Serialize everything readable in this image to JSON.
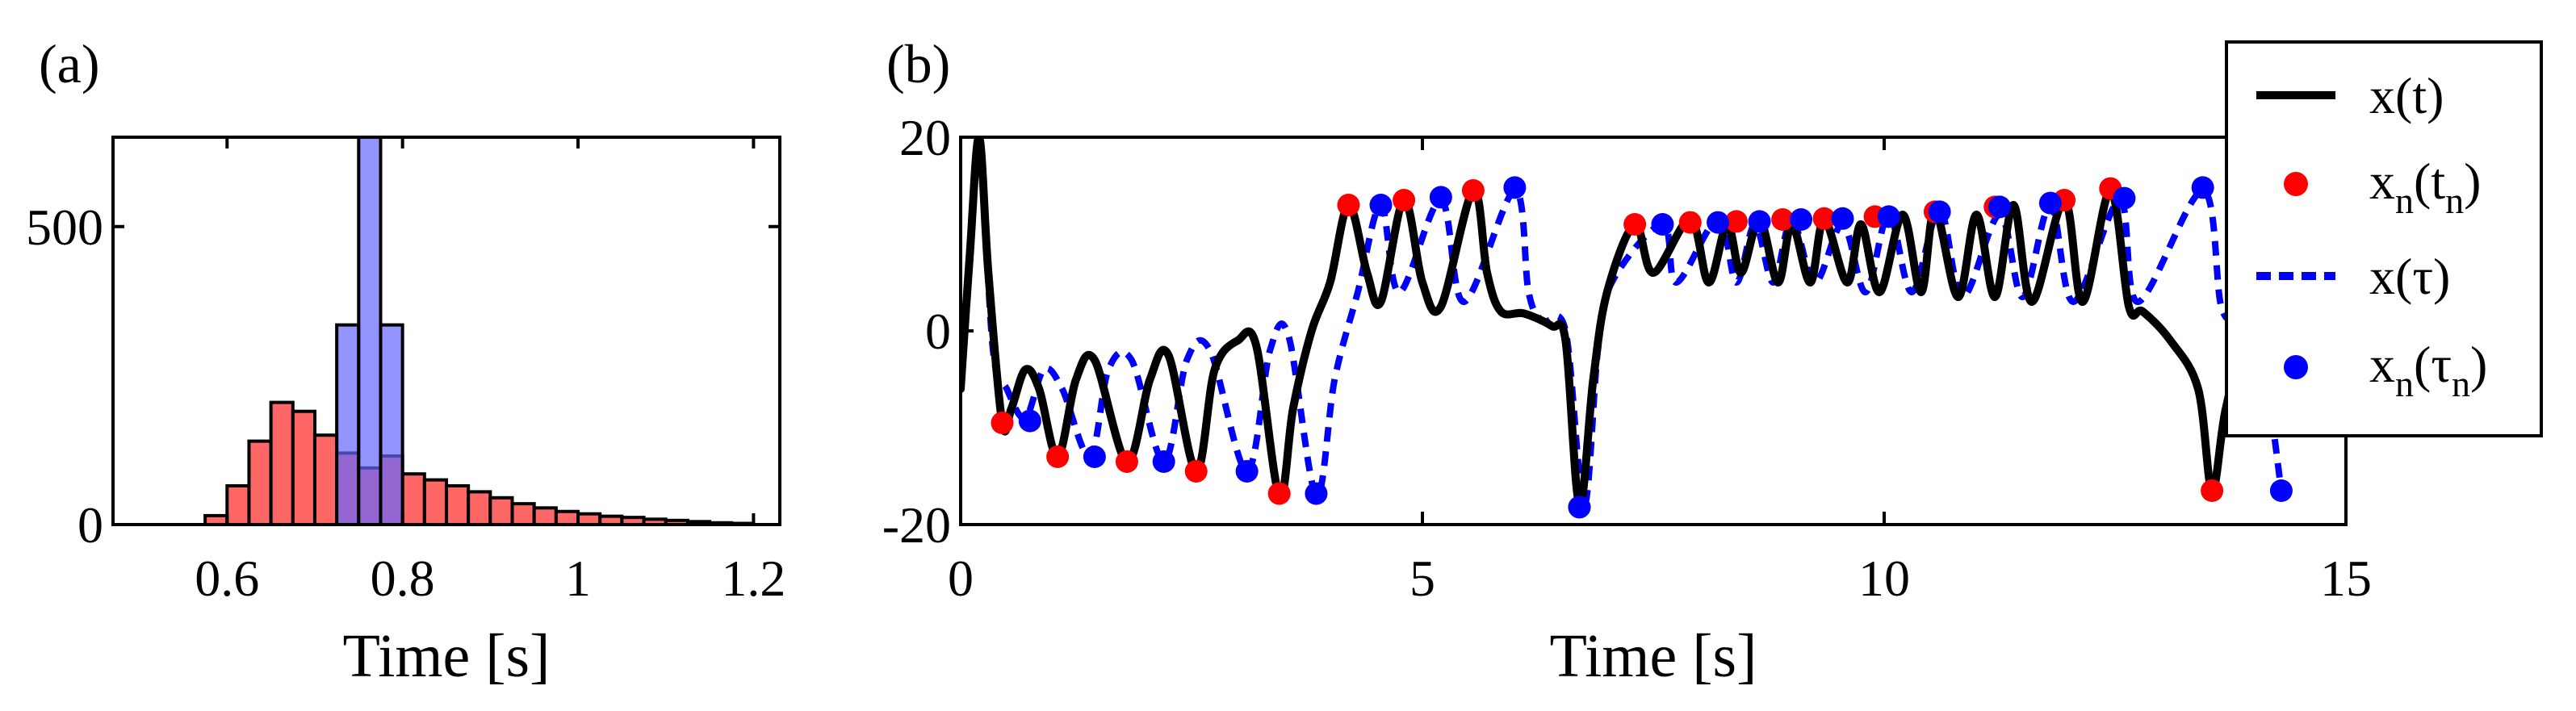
{
  "chart_data": [
    {
      "panel_label": "(a)",
      "type": "bar",
      "subtype": "overlapping-histogram",
      "xlabel": "Time [s]",
      "ylabel": "",
      "xlim": [
        0.47,
        1.23
      ],
      "ylim": [
        0,
        650
      ],
      "xticks": [
        0.6,
        0.8,
        1,
        1.2
      ],
      "xtick_labels": [
        "0.6",
        "0.8",
        "1",
        "1.2"
      ],
      "yticks": [
        0,
        500
      ],
      "ytick_labels": [
        "0",
        "500"
      ],
      "bin_width": 0.025,
      "series": [
        {
          "color": "#ff6666",
          "bin_starts": [
            0.575,
            0.6,
            0.625,
            0.65,
            0.675,
            0.7,
            0.725,
            0.75,
            0.775,
            0.8,
            0.825,
            0.85,
            0.875,
            0.9,
            0.925,
            0.95,
            0.975,
            1.0,
            1.025,
            1.05,
            1.075,
            1.1,
            1.125,
            1.15,
            1.175
          ],
          "values": [
            15,
            65,
            140,
            205,
            190,
            150,
            120,
            95,
            115,
            85,
            75,
            65,
            55,
            45,
            35,
            28,
            22,
            18,
            14,
            12,
            9,
            7,
            5,
            3,
            2
          ]
        },
        {
          "color": "#6666ff",
          "bin_starts": [
            0.725,
            0.75,
            0.775
          ],
          "values": [
            335,
            650,
            335
          ]
        }
      ]
    },
    {
      "panel_label": "(b)",
      "type": "line",
      "xlabel": "Time [s]",
      "ylabel": "",
      "xlim": [
        0,
        15
      ],
      "ylim": [
        -20,
        20
      ],
      "xticks": [
        0,
        5,
        10,
        15
      ],
      "xtick_labels": [
        "0",
        "5",
        "10",
        "15"
      ],
      "yticks": [
        -20,
        0,
        20
      ],
      "ytick_labels": [
        "-20",
        "0",
        "20"
      ],
      "legend_position": "top-right",
      "colors": {
        "xt": "#000000",
        "xn_tn": "#ff0000",
        "x_tau": "#0000ff",
        "xn_taun": "#0000ff"
      },
      "series": [
        {
          "name": "x(t)",
          "key": "xt",
          "style": "solid",
          "points": [
            [
              0,
              -6
            ],
            [
              0.1,
              8
            ],
            [
              0.2,
              20
            ],
            [
              0.3,
              6
            ],
            [
              0.45,
              -9.5
            ],
            [
              0.55,
              -8
            ],
            [
              0.7,
              -4
            ],
            [
              0.85,
              -6
            ],
            [
              1.05,
              -13
            ],
            [
              1.25,
              -5
            ],
            [
              1.45,
              -3
            ],
            [
              1.8,
              -13.5
            ],
            [
              2.05,
              -5
            ],
            [
              2.25,
              -2.5
            ],
            [
              2.55,
              -14.5
            ],
            [
              2.75,
              -4
            ],
            [
              3.0,
              -1
            ],
            [
              3.2,
              -1.5
            ],
            [
              3.45,
              -17
            ],
            [
              3.6,
              -8
            ],
            [
              3.8,
              0
            ],
            [
              4.0,
              5
            ],
            [
              4.2,
              13
            ],
            [
              4.4,
              6
            ],
            [
              4.55,
              3
            ],
            [
              4.8,
              13.5
            ],
            [
              5.0,
              5
            ],
            [
              5.2,
              2.5
            ],
            [
              5.55,
              14.5
            ],
            [
              5.7,
              6
            ],
            [
              5.85,
              2
            ],
            [
              6.1,
              1.8
            ],
            [
              6.4,
              0.5
            ],
            [
              6.55,
              -1
            ],
            [
              6.7,
              -18
            ],
            [
              6.85,
              -5
            ],
            [
              7.0,
              4
            ],
            [
              7.3,
              11
            ],
            [
              7.5,
              6
            ],
            [
              7.9,
              11.5
            ],
            [
              8.1,
              5
            ],
            [
              8.3,
              11
            ],
            [
              8.45,
              6
            ],
            [
              8.65,
              11.5
            ],
            [
              8.85,
              5
            ],
            [
              9.0,
              11
            ],
            [
              9.2,
              5
            ],
            [
              9.35,
              11.5
            ],
            [
              9.6,
              5
            ],
            [
              9.75,
              11
            ],
            [
              9.95,
              4
            ],
            [
              10.2,
              12
            ],
            [
              10.4,
              4
            ],
            [
              10.55,
              12.5
            ],
            [
              10.8,
              3.5
            ],
            [
              11.0,
              12
            ],
            [
              11.2,
              3.5
            ],
            [
              11.4,
              13
            ],
            [
              11.6,
              3
            ],
            [
              11.95,
              13.5
            ],
            [
              12.15,
              3
            ],
            [
              12.45,
              14.5
            ],
            [
              12.65,
              2.5
            ],
            [
              12.8,
              2
            ],
            [
              13.1,
              -1
            ],
            [
              13.4,
              -6
            ],
            [
              13.55,
              -16.5
            ],
            [
              13.7,
              -8
            ],
            [
              13.95,
              0
            ],
            [
              14.5,
              7
            ],
            [
              15,
              10
            ]
          ]
        },
        {
          "name": "x_n(t_n)",
          "key": "xn_tn",
          "style": "markers",
          "points": [
            [
              0.45,
              -9.5
            ],
            [
              1.05,
              -13
            ],
            [
              1.8,
              -13.5
            ],
            [
              2.55,
              -14.5
            ],
            [
              3.45,
              -16.8
            ],
            [
              4.2,
              13
            ],
            [
              4.8,
              13.5
            ],
            [
              5.55,
              14.5
            ],
            [
              6.7,
              -18.2
            ],
            [
              7.3,
              11
            ],
            [
              7.9,
              11.2
            ],
            [
              8.4,
              11.3
            ],
            [
              8.9,
              11.5
            ],
            [
              9.35,
              11.6
            ],
            [
              9.9,
              11.8
            ],
            [
              10.55,
              12.3
            ],
            [
              11.2,
              12.8
            ],
            [
              11.95,
              13.5
            ],
            [
              12.45,
              14.7
            ],
            [
              13.55,
              -16.5
            ]
          ]
        },
        {
          "name": "x(τ)",
          "key": "x_tau",
          "style": "dashed",
          "points": [
            [
              0,
              -6
            ],
            [
              0.1,
              7
            ],
            [
              0.2,
              20
            ],
            [
              0.35,
              -2
            ],
            [
              0.5,
              -6
            ],
            [
              0.7,
              -9
            ],
            [
              0.9,
              -4
            ],
            [
              1.1,
              -6
            ],
            [
              1.4,
              -13
            ],
            [
              1.6,
              -4
            ],
            [
              1.85,
              -3
            ],
            [
              2.2,
              -13.5
            ],
            [
              2.45,
              -3
            ],
            [
              2.7,
              -2
            ],
            [
              3.1,
              -14.5
            ],
            [
              3.35,
              -2
            ],
            [
              3.55,
              -0.5
            ],
            [
              3.85,
              -17
            ],
            [
              4.05,
              -5
            ],
            [
              4.3,
              4
            ],
            [
              4.55,
              13
            ],
            [
              4.75,
              4
            ],
            [
              5.2,
              13.5
            ],
            [
              5.45,
              3
            ],
            [
              6.0,
              14.5
            ],
            [
              6.15,
              4
            ],
            [
              6.3,
              1
            ],
            [
              6.55,
              0
            ],
            [
              6.75,
              -18
            ],
            [
              6.9,
              -2
            ],
            [
              7.05,
              5
            ],
            [
              7.6,
              11
            ],
            [
              7.75,
              5
            ],
            [
              8.2,
              11.5
            ],
            [
              8.4,
              5
            ],
            [
              8.6,
              11
            ],
            [
              8.8,
              5
            ],
            [
              9.0,
              11.5
            ],
            [
              9.25,
              5
            ],
            [
              9.55,
              11
            ],
            [
              9.8,
              4
            ],
            [
              10.05,
              12
            ],
            [
              10.3,
              4
            ],
            [
              10.6,
              12.5
            ],
            [
              10.85,
              3.5
            ],
            [
              11.25,
              12
            ],
            [
              11.5,
              3.5
            ],
            [
              11.8,
              13
            ],
            [
              12.05,
              3
            ],
            [
              12.55,
              13.5
            ],
            [
              12.75,
              3
            ],
            [
              13.45,
              14.5
            ],
            [
              13.65,
              2.5
            ],
            [
              13.85,
              1
            ],
            [
              14.0,
              -1
            ],
            [
              14.15,
              -6
            ],
            [
              14.3,
              -16.5
            ]
          ]
        },
        {
          "name": "x_n(τ_n)",
          "key": "xn_taun",
          "style": "markers",
          "points": [
            [
              0.75,
              -9.3
            ],
            [
              1.45,
              -13
            ],
            [
              2.2,
              -13.5
            ],
            [
              3.1,
              -14.5
            ],
            [
              3.85,
              -16.8
            ],
            [
              4.55,
              13
            ],
            [
              5.2,
              13.8
            ],
            [
              6.0,
              14.8
            ],
            [
              6.7,
              -18.2
            ],
            [
              7.6,
              11
            ],
            [
              8.2,
              11.2
            ],
            [
              8.65,
              11.3
            ],
            [
              9.1,
              11.5
            ],
            [
              9.55,
              11.6
            ],
            [
              10.05,
              11.8
            ],
            [
              10.6,
              12.3
            ],
            [
              11.25,
              12.8
            ],
            [
              11.8,
              13.2
            ],
            [
              12.6,
              13.7
            ],
            [
              13.45,
              14.8
            ],
            [
              14.3,
              -16.5
            ]
          ]
        }
      ],
      "legend": [
        {
          "key": "xt",
          "label_main": "x(t)",
          "label_sub": ""
        },
        {
          "key": "xn_tn",
          "label_main": "x",
          "label_sub": "n",
          "label_rest": "(t",
          "label_sub2": "n",
          "label_end": ")"
        },
        {
          "key": "x_tau",
          "label_main": "x(τ)",
          "label_sub": ""
        },
        {
          "key": "xn_taun",
          "label_main": "x",
          "label_sub": "n",
          "label_rest": "(τ",
          "label_sub2": "n",
          "label_end": ")"
        }
      ]
    }
  ]
}
